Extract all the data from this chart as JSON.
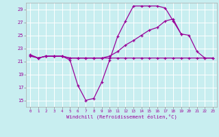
{
  "xlabel": "Windchill (Refroidissement éolien,°C)",
  "bg_color": "#c8eef0",
  "grid_color": "#ffffff",
  "line_color": "#990099",
  "x": [
    0,
    1,
    2,
    3,
    4,
    5,
    6,
    7,
    8,
    9,
    10,
    11,
    12,
    13,
    14,
    15,
    16,
    17,
    18,
    19,
    20,
    21,
    22,
    23
  ],
  "line1": [
    22.0,
    21.5,
    21.8,
    21.8,
    21.8,
    21.2,
    17.3,
    15.0,
    15.3,
    17.8,
    21.2,
    24.8,
    27.2,
    29.5,
    29.5,
    29.5,
    29.5,
    29.2,
    27.2,
    25.2,
    null,
    null,
    null,
    null
  ],
  "line2": [
    21.8,
    21.5,
    21.8,
    21.8,
    21.8,
    21.5,
    21.5,
    21.5,
    21.5,
    21.5,
    21.5,
    21.5,
    21.5,
    21.5,
    21.5,
    21.5,
    21.5,
    21.5,
    21.5,
    21.5,
    21.5,
    21.5,
    21.5,
    21.5
  ],
  "line3": [
    22.0,
    21.5,
    21.8,
    21.8,
    21.8,
    21.5,
    21.5,
    21.5,
    21.5,
    21.5,
    21.8,
    22.5,
    23.5,
    24.2,
    25.0,
    25.8,
    26.2,
    27.2,
    27.5,
    25.2,
    25.0,
    22.5,
    21.5,
    21.5
  ],
  "xmin": 0,
  "xmax": 23,
  "ymin": 14,
  "ymax": 30,
  "yticks": [
    15,
    17,
    19,
    21,
    23,
    25,
    27,
    29
  ],
  "figw": 3.2,
  "figh": 2.0,
  "dpi": 100
}
